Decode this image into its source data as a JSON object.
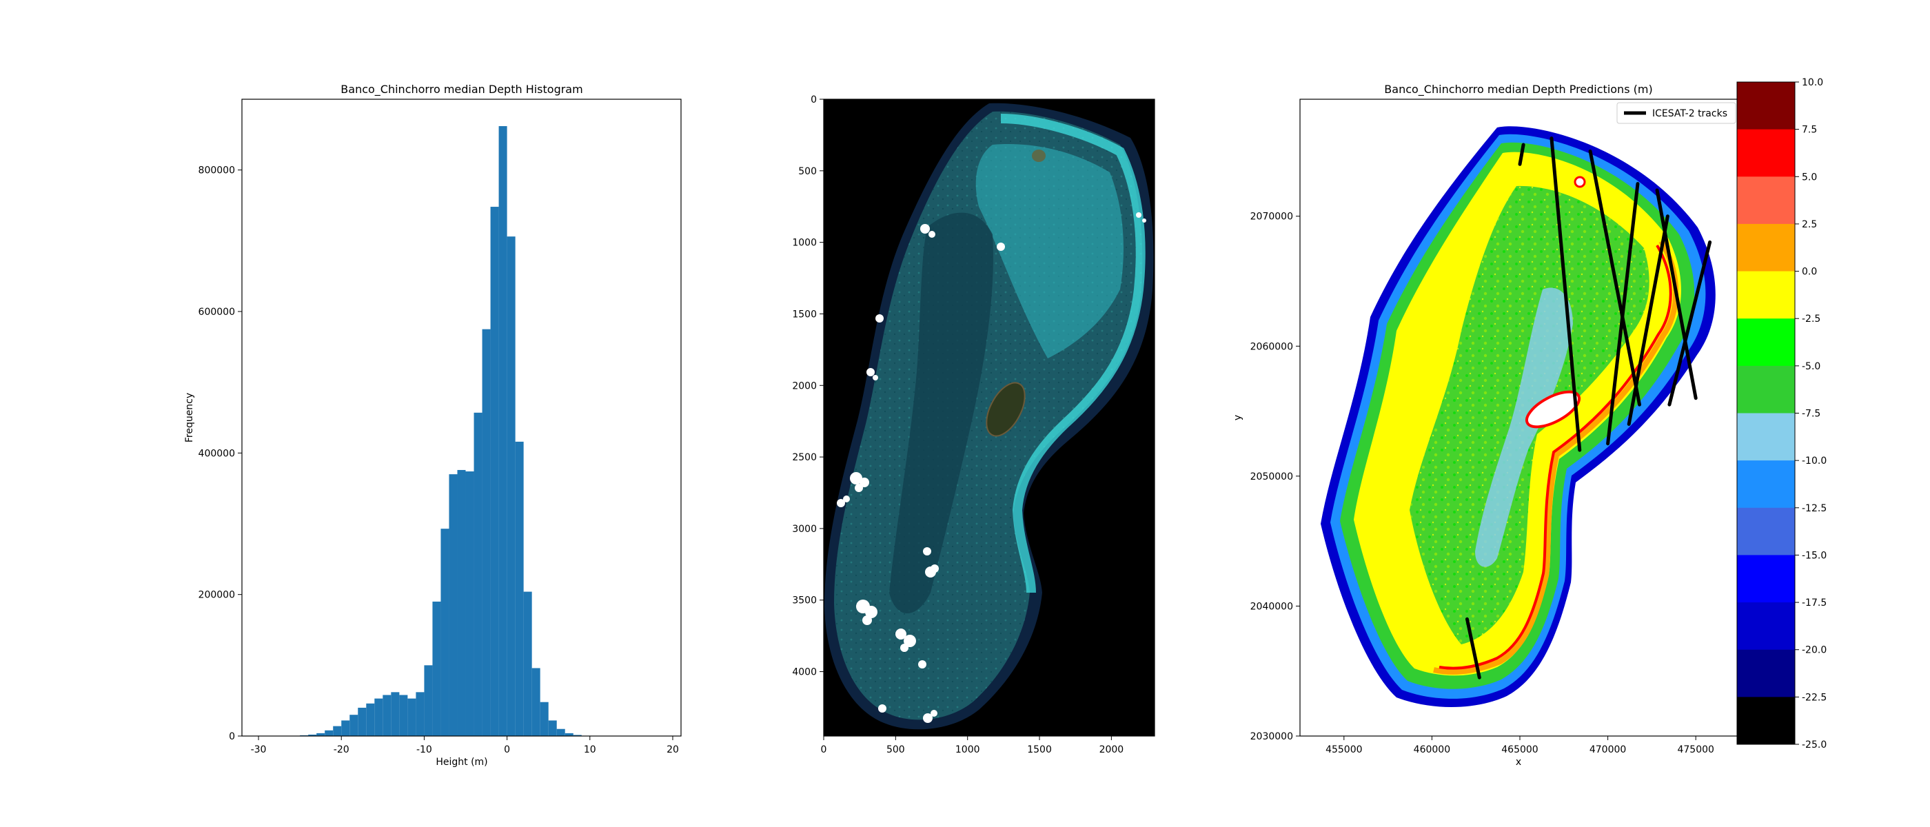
{
  "chart_data": [
    {
      "type": "bar",
      "title": "Banco_Chinchorro median Depth Histogram",
      "xlabel": "Height (m)",
      "ylabel": "Frequency",
      "xlim": [
        -32,
        21
      ],
      "ylim": [
        0,
        900000
      ],
      "xticks": [
        -30,
        -20,
        -10,
        0,
        10,
        20
      ],
      "yticks": [
        0,
        200000,
        400000,
        600000,
        800000
      ],
      "color": "#1f77b4",
      "bin_width": 1,
      "bins": [
        {
          "x": -25,
          "v": 1000
        },
        {
          "x": -24,
          "v": 2000
        },
        {
          "x": -23,
          "v": 4000
        },
        {
          "x": -22,
          "v": 8000
        },
        {
          "x": -21,
          "v": 14000
        },
        {
          "x": -20,
          "v": 22000
        },
        {
          "x": -19,
          "v": 30000
        },
        {
          "x": -18,
          "v": 40000
        },
        {
          "x": -17,
          "v": 46000
        },
        {
          "x": -16,
          "v": 53000
        },
        {
          "x": -15,
          "v": 58000
        },
        {
          "x": -14,
          "v": 62000
        },
        {
          "x": -13,
          "v": 58000
        },
        {
          "x": -12,
          "v": 53000
        },
        {
          "x": -11,
          "v": 62000
        },
        {
          "x": -10,
          "v": 100000
        },
        {
          "x": -9,
          "v": 190000
        },
        {
          "x": -8,
          "v": 293000
        },
        {
          "x": -7,
          "v": 370000
        },
        {
          "x": -6,
          "v": 376000
        },
        {
          "x": -5,
          "v": 374000
        },
        {
          "x": -4,
          "v": 457000
        },
        {
          "x": -3,
          "v": 575000
        },
        {
          "x": -2,
          "v": 748000
        },
        {
          "x": -1,
          "v": 862000
        },
        {
          "x": 0,
          "v": 706000
        },
        {
          "x": 1,
          "v": 416000
        },
        {
          "x": 2,
          "v": 204000
        },
        {
          "x": 3,
          "v": 96000
        },
        {
          "x": 4,
          "v": 48000
        },
        {
          "x": 5,
          "v": 22000
        },
        {
          "x": 6,
          "v": 10000
        },
        {
          "x": 7,
          "v": 4000
        },
        {
          "x": 8,
          "v": 1500
        }
      ]
    },
    {
      "type": "heatmap",
      "title": "",
      "xlabel": "",
      "ylabel": "",
      "xlim": [
        0,
        2300
      ],
      "ylim": [
        4450,
        0
      ],
      "xticks": [
        0,
        500,
        1000,
        1500,
        2000
      ],
      "yticks": [
        0,
        500,
        1000,
        1500,
        2000,
        2500,
        3000,
        3500,
        4000
      ],
      "background": "#000000"
    },
    {
      "type": "heatmap",
      "title": "Banco_Chinchorro median Depth Predictions (m)",
      "xlabel": "x",
      "ylabel": "y",
      "xlim": [
        452500,
        477500
      ],
      "ylim": [
        2030000,
        2079000
      ],
      "xticks": [
        455000,
        460000,
        465000,
        470000,
        475000
      ],
      "xtick_labels": [
        "455000",
        "460000",
        "465000",
        "470000",
        "475000"
      ],
      "yticks": [
        2030000,
        2040000,
        2050000,
        2060000,
        2070000
      ],
      "ytick_labels": [
        "2030000",
        "2040000",
        "2050000",
        "2060000",
        "2070000"
      ],
      "legend": {
        "label": "ICESAT-2 tracks",
        "placement": "upper-right",
        "color": "#000000"
      },
      "colorbar": {
        "min": -25.0,
        "max": 10.0,
        "ticks": [
          "10.0",
          "7.5",
          "5.0",
          "2.5",
          "0.0",
          "-2.5",
          "-5.0",
          "-7.5",
          "-10.0",
          "-12.5",
          "-15.0",
          "-17.5",
          "-20.0",
          "-22.5",
          "-25.0"
        ],
        "colors_top_to_bottom": [
          "#800000",
          "#ff0000",
          "#ff6347",
          "#ffa500",
          "#ffff00",
          "#00ff00",
          "#32cd32",
          "#87ceeb",
          "#1e90ff",
          "#4169e1",
          "#0000ff",
          "#0000cd",
          "#00008b",
          "#000000"
        ]
      },
      "tracks": [
        [
          [
            465000,
            2074000
          ],
          [
            465200,
            2075500
          ]
        ],
        [
          [
            466800,
            2076000
          ],
          [
            468400,
            2052000
          ]
        ],
        [
          [
            469000,
            2075000
          ],
          [
            471800,
            2055500
          ]
        ],
        [
          [
            470000,
            2052500
          ],
          [
            471700,
            2072500
          ]
        ],
        [
          [
            471200,
            2054000
          ],
          [
            473400,
            2070000
          ]
        ],
        [
          [
            472800,
            2072000
          ],
          [
            475000,
            2056000
          ]
        ],
        [
          [
            473500,
            2055500
          ],
          [
            475800,
            2068000
          ]
        ],
        [
          [
            462000,
            2039000
          ],
          [
            462700,
            2034500
          ]
        ]
      ]
    }
  ]
}
